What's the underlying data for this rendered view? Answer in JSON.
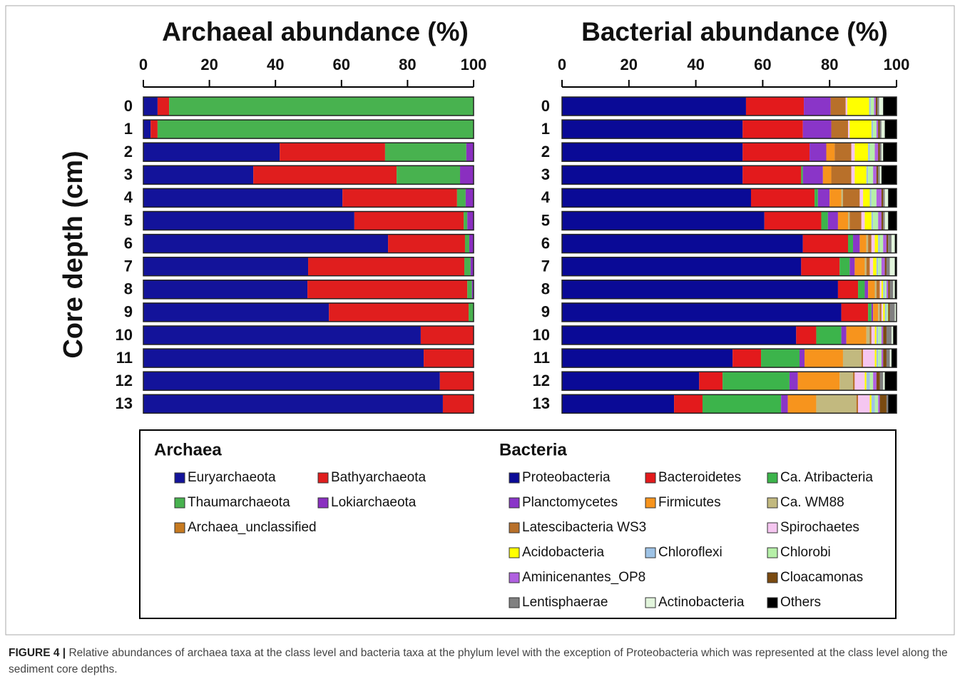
{
  "chart_data": [
    {
      "type": "bar",
      "orientation": "horizontal",
      "stacked": true,
      "title": "Archaeal abundance (%)",
      "y_label": "Core depth (cm)",
      "legend_title": "Archaea",
      "categories": [
        "0",
        "1",
        "2",
        "3",
        "4",
        "5",
        "6",
        "7",
        "8",
        "9",
        "10",
        "11",
        "12",
        "13"
      ],
      "xlim": [
        0,
        100
      ],
      "xticks": [
        0,
        20,
        40,
        60,
        80,
        100
      ],
      "series": [
        {
          "name": "Euryarchaeota",
          "color": "#13139a",
          "values": [
            4.3,
            2.2,
            41.3,
            33.3,
            60.3,
            63.9,
            74.1,
            49.9,
            49.7,
            56.2,
            84,
            84.9,
            89.8,
            90.7
          ]
        },
        {
          "name": "Bathyarchaeota",
          "color": "#e01e1e",
          "values": [
            3.5,
            2.1,
            31.9,
            43.4,
            34.7,
            33.1,
            23.3,
            47.3,
            48.4,
            42.3,
            16,
            15.1,
            10.2,
            9.3
          ]
        },
        {
          "name": "Thaumarchaeota",
          "color": "#48b24f",
          "values": [
            92.2,
            95.7,
            24.6,
            19.2,
            2.6,
            1.1,
            1.3,
            1.9,
            1.4,
            1.5,
            0,
            0,
            0,
            0
          ]
        },
        {
          "name": "Lokiarchaeota",
          "color": "#8a2fc0",
          "values": [
            0,
            0,
            2.2,
            4.1,
            2.4,
            1.9,
            1.3,
            0.9,
            0.5,
            0,
            0,
            0,
            0,
            0
          ]
        },
        {
          "name": "Archaea_unclassified",
          "color": "#c77a20",
          "values": [
            0,
            0,
            0,
            0,
            0,
            0,
            0,
            0,
            0,
            0,
            0,
            0,
            0,
            0
          ]
        }
      ]
    },
    {
      "type": "bar",
      "orientation": "horizontal",
      "stacked": true,
      "title": "Bacterial abundance (%)",
      "legend_title": "Bacteria",
      "categories": [
        "0",
        "1",
        "2",
        "3",
        "4",
        "5",
        "6",
        "7",
        "8",
        "9",
        "10",
        "11",
        "12",
        "13"
      ],
      "xlim": [
        0,
        100
      ],
      "xticks": [
        0,
        20,
        40,
        60,
        80,
        100
      ],
      "series": [
        {
          "name": "Proteobacteria",
          "color": "#0a0a96",
          "values": [
            55,
            54,
            54,
            54,
            56.5,
            60.5,
            72,
            71.5,
            82.5,
            83.5,
            70,
            51,
            41,
            33.5
          ]
        },
        {
          "name": "Bacteroidetes",
          "color": "#e31a1c",
          "values": [
            17.3,
            18,
            20,
            17.5,
            19,
            17,
            13.5,
            11.5,
            6,
            8,
            6,
            8.5,
            7,
            8.5
          ]
        },
        {
          "name": "Ca. Atribacteria",
          "color": "#3cb44b",
          "values": [
            0,
            0,
            0,
            0.5,
            1,
            2,
            1.5,
            3,
            2,
            1,
            7.5,
            11.5,
            20,
            23.5
          ]
        },
        {
          "name": "Planctomycetes",
          "color": "#8a35c8",
          "values": [
            8,
            8.5,
            5,
            6,
            3.5,
            3,
            2,
            1.5,
            1,
            0.5,
            1.5,
            1.5,
            2.5,
            2
          ]
        },
        {
          "name": "Firmicutes",
          "color": "#f7941d",
          "values": [
            0,
            0,
            2.5,
            2.5,
            3.5,
            3,
            2,
            3,
            2,
            1.5,
            6,
            11.5,
            12.5,
            8.5
          ]
        },
        {
          "name": "Ca. WM88",
          "color": "#c2b97f",
          "values": [
            0,
            0,
            0,
            0,
            0.5,
            0.5,
            0.5,
            0.5,
            0.5,
            0.5,
            1,
            5.5,
            4,
            12
          ]
        },
        {
          "name": "Latescibacteria WS3",
          "color": "#b8702a",
          "values": [
            4.5,
            5,
            5,
            6,
            5,
            3.5,
            1,
            1,
            1,
            0.5,
            0.5,
            0.5,
            0.5,
            0.5
          ]
        },
        {
          "name": "Spirochaetes",
          "color": "#f5c6f0",
          "values": [
            0.5,
            0.5,
            1,
            1,
            1,
            1,
            1,
            1,
            0.5,
            0.5,
            1,
            3.5,
            3,
            3.5
          ]
        },
        {
          "name": "Acidobacteria",
          "color": "#ffff00",
          "values": [
            6.5,
            6.5,
            4,
            3.5,
            2,
            2,
            1,
            1,
            0.5,
            0.5,
            0.5,
            0.5,
            0.5,
            0.5
          ]
        },
        {
          "name": "Chloroflexi",
          "color": "#9ec3e6",
          "values": [
            0.5,
            0.5,
            0.5,
            0.5,
            0.5,
            0.5,
            0.5,
            0.5,
            0.5,
            0.5,
            0.5,
            0.5,
            1,
            1
          ]
        },
        {
          "name": "Chlorobi",
          "color": "#b6f0a8",
          "values": [
            1,
            1,
            1.5,
            1.5,
            1.5,
            1.5,
            1,
            1,
            0.5,
            0.5,
            1,
            1,
            1,
            1
          ]
        },
        {
          "name": "Aminicenantes_OP8",
          "color": "#b060e0",
          "values": [
            0.5,
            0.5,
            1,
            1,
            1.5,
            1,
            1,
            1,
            0.5,
            0,
            0.5,
            0.5,
            1,
            0.5
          ]
        },
        {
          "name": "Cloacamonas",
          "color": "#7a4a10",
          "values": [
            0.5,
            0.5,
            0.5,
            0.5,
            0.5,
            0.5,
            0.5,
            0.5,
            0.5,
            0.5,
            1,
            1,
            1,
            2
          ]
        },
        {
          "name": "Lentisphaerae",
          "color": "#808080",
          "values": [
            0.5,
            0.5,
            0.5,
            0.5,
            0.5,
            0.5,
            1,
            1,
            1,
            1.5,
            1.5,
            1,
            1,
            0.5
          ]
        },
        {
          "name": "Actinobacteria",
          "color": "#e2f5dc",
          "values": [
            1.2,
            1,
            0.5,
            0.5,
            1,
            1,
            1,
            1.5,
            0.5,
            0.5,
            0.5,
            0.5,
            0.5,
            0
          ]
        },
        {
          "name": "Others",
          "color": "#000000",
          "values": [
            4,
            3.5,
            4,
            4.5,
            2.5,
            2.5,
            0.5,
            0.5,
            0.5,
            0,
            1,
            1.5,
            3.5,
            2.5
          ]
        }
      ]
    }
  ],
  "caption": {
    "label": "FIGURE 4 |",
    "text": "Relative abundances of archaea taxa at the class level and bacteria taxa at the phylum level with the exception of Proteobacteria which was represented at the class level along the sediment core depths."
  }
}
